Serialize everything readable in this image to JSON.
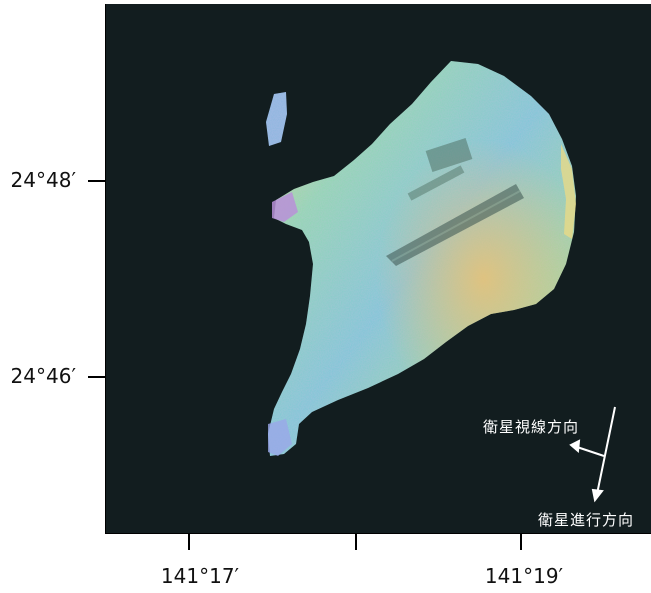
{
  "map": {
    "background_color": "#121d1f",
    "island_palette": [
      "#6fd0a8",
      "#7fc8d8",
      "#d8d878",
      "#e0a878",
      "#b088d0",
      "#90e0b0"
    ]
  },
  "axes": {
    "y_ticks": [
      {
        "label": "24°48′"
      },
      {
        "label": "24°46′"
      }
    ],
    "x_ticks": [
      {
        "label": "141°17′"
      },
      {
        "label": ""
      },
      {
        "label": "141°19′"
      }
    ]
  },
  "annotations": {
    "line_of_sight": "衛星視線方向",
    "flight_direction": "衛星進行方向"
  }
}
